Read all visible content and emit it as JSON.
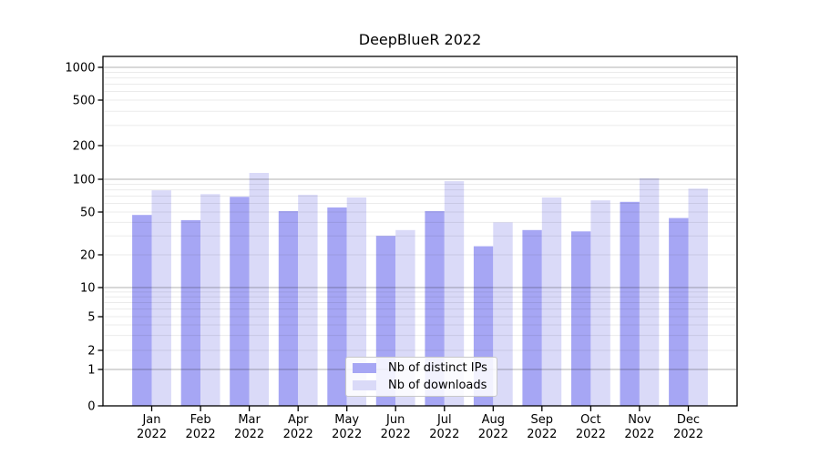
{
  "chart_data": {
    "type": "bar",
    "title": "DeepBlueR 2022",
    "scale": "symlog",
    "grid": true,
    "legend_position": "lower center",
    "year": "2022",
    "categories": [
      "Jan",
      "Feb",
      "Mar",
      "Apr",
      "May",
      "Jun",
      "Jul",
      "Aug",
      "Sep",
      "Oct",
      "Nov",
      "Dec"
    ],
    "series": [
      {
        "name": "Nb of distinct IPs",
        "color": "#a6a6f4",
        "values": [
          47,
          42,
          69,
          51,
          55,
          30,
          51,
          24,
          34,
          33,
          62,
          44
        ]
      },
      {
        "name": "Nb of downloads",
        "color": "#dadaf8",
        "values": [
          79,
          73,
          114,
          72,
          68,
          34,
          96,
          40,
          68,
          64,
          102,
          82
        ]
      }
    ],
    "y_ticks": [
      0,
      1,
      2,
      5,
      10,
      20,
      50,
      100,
      200,
      500,
      1000
    ],
    "y_minor_ticks": [
      3,
      4,
      6,
      7,
      8,
      9,
      30,
      40,
      60,
      70,
      80,
      90,
      300,
      400,
      600,
      700,
      800,
      900
    ],
    "ylim": [
      0,
      1250
    ],
    "colors": {
      "major_grid": "rgba(0,0,0,0.30)",
      "minor_grid": "rgba(0,0,0,0.08)",
      "spine": "#000000",
      "text": "#000000",
      "background": "#ffffff"
    }
  },
  "legend": {
    "items": [
      {
        "label": "Nb of distinct IPs"
      },
      {
        "label": "Nb of downloads"
      }
    ]
  }
}
